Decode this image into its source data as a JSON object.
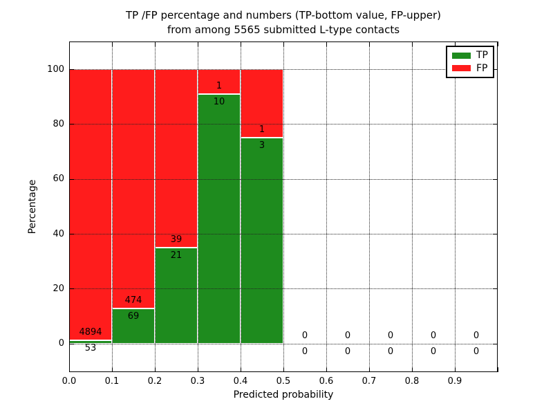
{
  "chart_data": {
    "type": "bar",
    "stacked": true,
    "title_line1": "TP /FP percentage and numbers (TP-bottom value, FP-upper)",
    "title_line2": "from among 5565 submitted L-type contacts",
    "xlabel": "Predicted probability",
    "ylabel": "Percentage",
    "xlim": [
      0.0,
      1.0
    ],
    "ylim": [
      -10.4,
      110.1
    ],
    "xtick_values": [
      0.0,
      0.1,
      0.2,
      0.3,
      0.4,
      0.5,
      0.6,
      0.7,
      0.8,
      0.9
    ],
    "xtick_labels": [
      "0.0",
      "0.1",
      "0.2",
      "0.3",
      "0.4",
      "0.5",
      "0.6",
      "0.7",
      "0.8",
      "0.9"
    ],
    "ytick_values": [
      0,
      20,
      40,
      60,
      80,
      100
    ],
    "ytick_labels": [
      "0",
      "20",
      "40",
      "60",
      "80",
      "100"
    ],
    "grid": true,
    "colors": {
      "tp": "#1e8b1e",
      "fp": "#ff1c1c",
      "bar_edge": "#ffffff"
    },
    "legend": {
      "position": "upper right",
      "entries": [
        {
          "label": "TP",
          "color": "#1e8b1e"
        },
        {
          "label": "FP",
          "color": "#ff1c1c"
        }
      ]
    },
    "bins": [
      {
        "range": [
          0.0,
          0.1
        ],
        "tp": 53,
        "fp": 4894
      },
      {
        "range": [
          0.1,
          0.2
        ],
        "tp": 69,
        "fp": 474
      },
      {
        "range": [
          0.2,
          0.3
        ],
        "tp": 21,
        "fp": 39
      },
      {
        "range": [
          0.3,
          0.4
        ],
        "tp": 10,
        "fp": 1
      },
      {
        "range": [
          0.4,
          0.5
        ],
        "tp": 3,
        "fp": 1
      },
      {
        "range": [
          0.5,
          0.6
        ],
        "tp": 0,
        "fp": 0
      },
      {
        "range": [
          0.6,
          0.7
        ],
        "tp": 0,
        "fp": 0
      },
      {
        "range": [
          0.7,
          0.8
        ],
        "tp": 0,
        "fp": 0
      },
      {
        "range": [
          0.8,
          0.9
        ],
        "tp": 0,
        "fp": 0
      },
      {
        "range": [
          0.9,
          1.0
        ],
        "tp": 0,
        "fp": 0
      }
    ]
  }
}
